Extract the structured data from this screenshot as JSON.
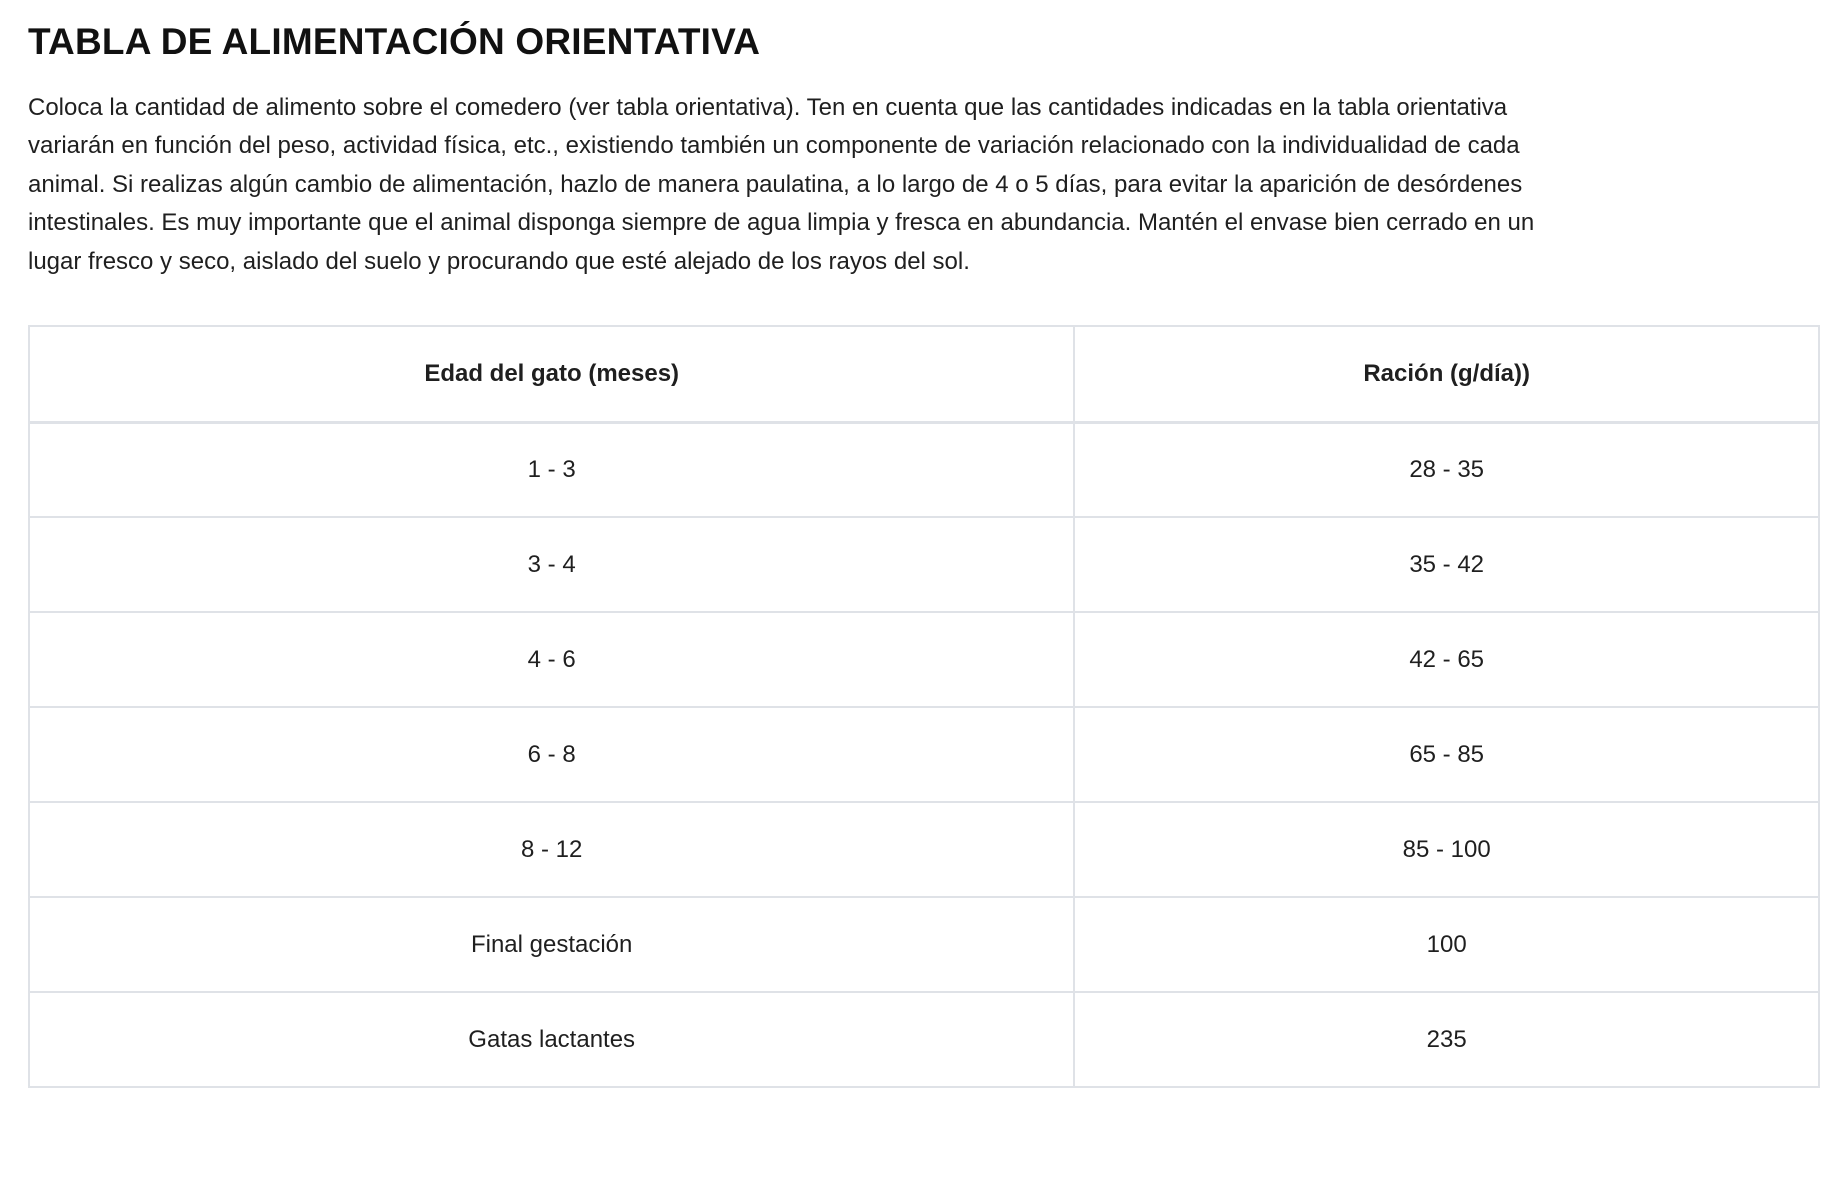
{
  "page": {
    "title": "TABLA DE ALIMENTACIÓN ORIENTATIVA",
    "intro": "Coloca la cantidad de alimento sobre el comedero (ver tabla orientativa). Ten en cuenta que las cantidades indicadas en la tabla orientativa variarán en función del peso, actividad física, etc., existiendo también un componente de variación relacionado con la individualidad de cada animal. Si realizas algún cambio de alimentación, hazlo de manera paulatina, a lo largo de 4 o 5 días, para evitar la aparición de desórdenes intestinales. Es muy importante que el animal disponga siempre de agua limpia y fresca en abundancia. Mantén el envase bien cerrado en un lugar fresco y seco, aislado del suelo y procurando que esté alejado de los rayos del sol."
  },
  "feeding_table": {
    "headers": {
      "age": "Edad del gato (meses)",
      "ration": "Ración (g/día))"
    },
    "rows": [
      {
        "age": "1 - 3",
        "ration": "28 - 35"
      },
      {
        "age": "3 - 4",
        "ration": "35 - 42"
      },
      {
        "age": "4 - 6",
        "ration": "42 - 65"
      },
      {
        "age": "6 - 8",
        "ration": "65 - 85"
      },
      {
        "age": "8 - 12",
        "ration": "85 - 100"
      },
      {
        "age": "Final gestación",
        "ration": "100"
      },
      {
        "age": "Gatas lactantes",
        "ration": "235"
      }
    ]
  },
  "colors": {
    "text": "#1f1f1f",
    "title": "#111111",
    "table_border": "#dfe2e7",
    "background": "#ffffff"
  }
}
